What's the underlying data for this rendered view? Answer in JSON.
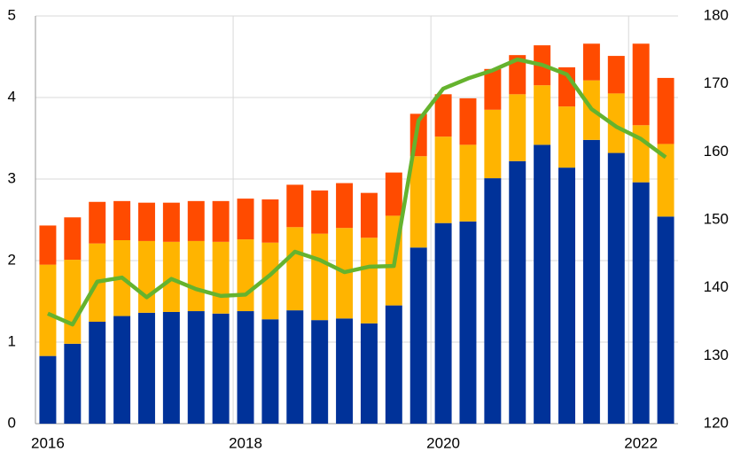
{
  "chart_data": {
    "type": "bar",
    "stacked": true,
    "categories": [
      "2016",
      null,
      null,
      null,
      null,
      null,
      null,
      null,
      "2018",
      null,
      null,
      null,
      null,
      null,
      null,
      null,
      "2020",
      null,
      null,
      null,
      null,
      null,
      null,
      null,
      "2022",
      null
    ],
    "series": [
      {
        "color": "#003299",
        "values": [
          0.83,
          0.98,
          1.25,
          1.32,
          1.36,
          1.37,
          1.38,
          1.35,
          1.38,
          1.28,
          1.39,
          1.27,
          1.29,
          1.23,
          1.45,
          2.16,
          2.46,
          2.48,
          3.01,
          3.22,
          3.42,
          3.14,
          3.48,
          3.32,
          2.96,
          2.54
        ]
      },
      {
        "color": "#ffb400",
        "values": [
          1.12,
          1.03,
          0.96,
          0.93,
          0.88,
          0.86,
          0.86,
          0.88,
          0.88,
          0.94,
          1.02,
          1.06,
          1.11,
          1.05,
          1.1,
          1.12,
          1.06,
          0.94,
          0.84,
          0.82,
          0.73,
          0.75,
          0.73,
          0.73,
          0.7,
          0.89
        ]
      },
      {
        "color": "#ff4b00",
        "values": [
          0.48,
          0.52,
          0.51,
          0.48,
          0.47,
          0.48,
          0.49,
          0.5,
          0.5,
          0.53,
          0.52,
          0.53,
          0.55,
          0.55,
          0.53,
          0.52,
          0.52,
          0.57,
          0.5,
          0.48,
          0.49,
          0.48,
          0.45,
          0.46,
          1.0,
          0.81
        ]
      },
      {
        "type": "line",
        "axis": "y2",
        "color": "#65b32e",
        "values": [
          136.2,
          134.6,
          140.9,
          141.5,
          138.6,
          141.3,
          139.8,
          138.8,
          139.0,
          141.9,
          145.3,
          144.1,
          142.3,
          143.1,
          143.2,
          164.6,
          169.3,
          170.8,
          172.0,
          173.6,
          172.8,
          171.4,
          166.3,
          163.7,
          161.9,
          159.2
        ]
      }
    ],
    "ylim": [
      0,
      5
    ],
    "yticks": [
      0,
      1,
      2,
      3,
      4,
      5
    ],
    "y2lim": [
      120,
      180
    ],
    "y2ticks": [
      120,
      130,
      140,
      150,
      160,
      170,
      180
    ],
    "grid": true
  }
}
